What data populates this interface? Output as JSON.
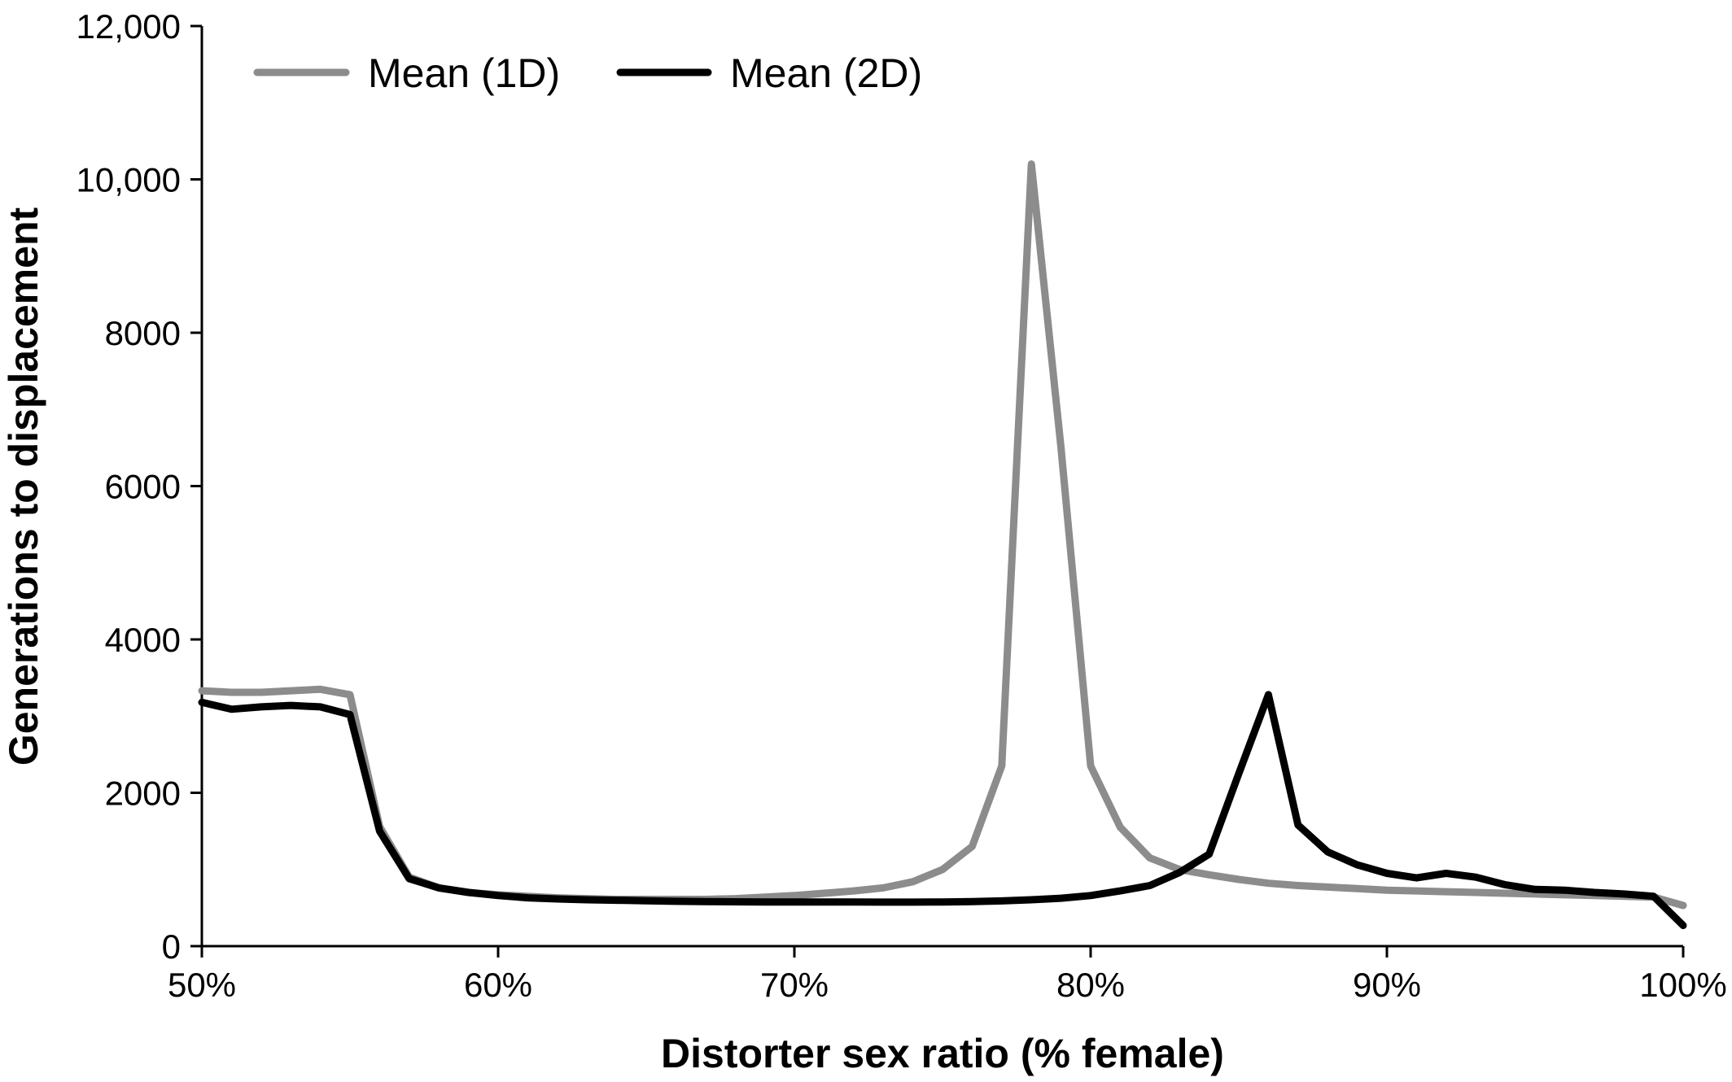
{
  "chart_data": {
    "type": "line",
    "title": "",
    "xlabel": "Distorter sex ratio (% female)",
    "ylabel": "Generations to displacement",
    "xlim": [
      50,
      100
    ],
    "ylim": [
      0,
      12000
    ],
    "x_ticks": [
      50,
      60,
      70,
      80,
      90,
      100
    ],
    "x_tick_labels": [
      "50%",
      "60%",
      "70%",
      "80%",
      "90%",
      "100%"
    ],
    "y_ticks": [
      0,
      2000,
      4000,
      6000,
      8000,
      10000,
      12000
    ],
    "y_tick_labels": [
      "0",
      "2000",
      "4000",
      "6000",
      "8000",
      "10,000",
      "12,000"
    ],
    "grid": false,
    "legend_position": "top-left",
    "x": [
      50,
      51,
      52,
      53,
      54,
      55,
      56,
      57,
      58,
      59,
      60,
      61,
      62,
      63,
      64,
      65,
      66,
      67,
      68,
      69,
      70,
      71,
      72,
      73,
      74,
      75,
      76,
      77,
      78,
      79,
      80,
      81,
      82,
      83,
      84,
      85,
      86,
      87,
      88,
      89,
      90,
      91,
      92,
      93,
      94,
      95,
      96,
      97,
      98,
      99,
      100
    ],
    "series": [
      {
        "name": "Mean (1D)",
        "color": "#8c8c8c",
        "values": [
          3330,
          3310,
          3310,
          3330,
          3350,
          3280,
          1560,
          900,
          760,
          700,
          670,
          650,
          630,
          620,
          610,
          610,
          610,
          610,
          620,
          640,
          660,
          690,
          720,
          760,
          840,
          1000,
          1300,
          2350,
          10200,
          6500,
          2350,
          1550,
          1150,
          1000,
          930,
          870,
          820,
          790,
          770,
          750,
          730,
          720,
          710,
          700,
          690,
          680,
          670,
          660,
          650,
          640,
          530
        ]
      },
      {
        "name": "Mean (2D)",
        "color": "#000000",
        "values": [
          3180,
          3090,
          3120,
          3140,
          3120,
          3020,
          1500,
          880,
          760,
          700,
          660,
          630,
          615,
          605,
          598,
          592,
          585,
          580,
          578,
          576,
          575,
          575,
          575,
          574,
          574,
          576,
          580,
          590,
          605,
          625,
          660,
          720,
          790,
          960,
          1200,
          2250,
          3280,
          1580,
          1230,
          1060,
          950,
          890,
          950,
          900,
          800,
          740,
          730,
          700,
          680,
          650,
          270
        ]
      }
    ]
  }
}
